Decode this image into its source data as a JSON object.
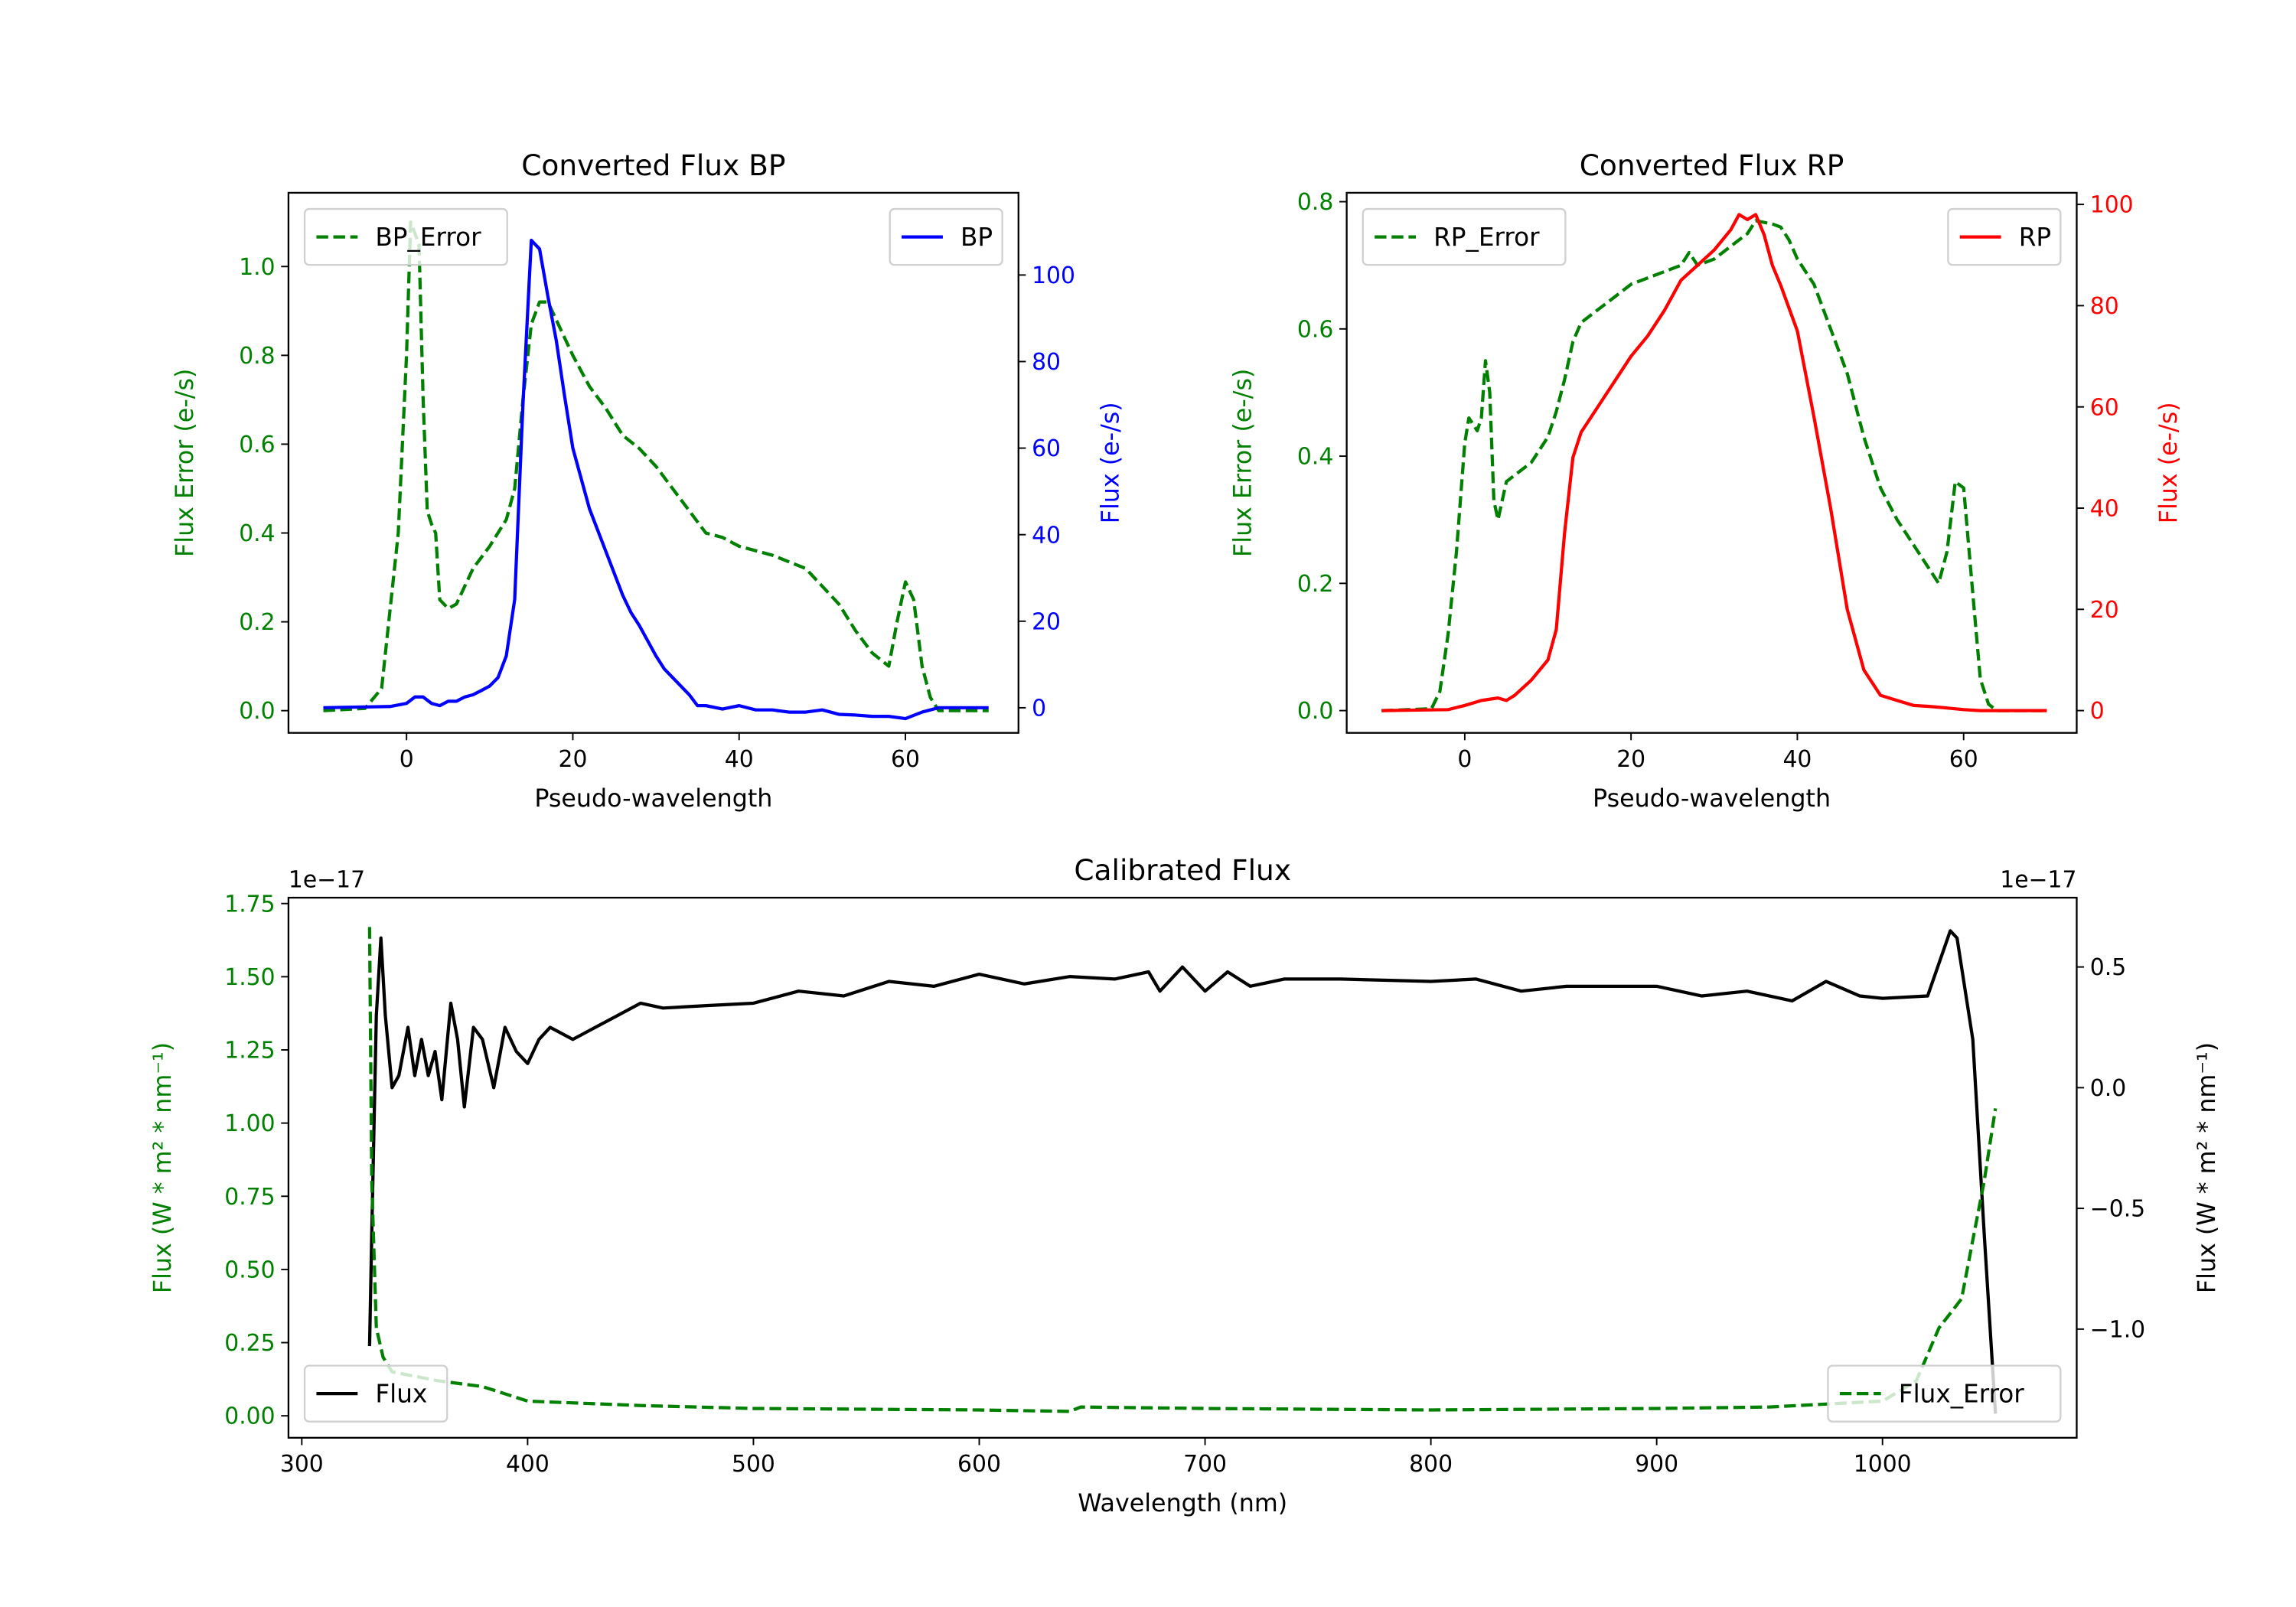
{
  "chart_data": [
    {
      "type": "line",
      "title": "Converted Flux BP",
      "xlabel": "Pseudo-wavelength",
      "ylabel_left": "Flux Error (e-/s)",
      "ylabel_right": "Flux (e-/s)",
      "xlim": [
        -14.2,
        73.6
      ],
      "ylim_left": [
        -0.05,
        1.166
      ],
      "ylim_right": [
        -5.8,
        119
      ],
      "xticks": [
        0,
        20,
        40,
        60
      ],
      "xtick_labels": [
        "0",
        "20",
        "40",
        "60"
      ],
      "yticks_left": [
        0,
        0.2,
        0.4,
        0.6,
        0.8,
        1.0
      ],
      "ytick_labels_left": [
        "0.0",
        "0.2",
        "0.4",
        "0.6",
        "0.8",
        "1.0"
      ],
      "yticks_right": [
        0,
        20,
        40,
        60,
        80,
        100
      ],
      "ytick_labels_right": [
        "0",
        "20",
        "40",
        "60",
        "80",
        "100"
      ],
      "left_color": "#008000",
      "right_color": "#0000ff",
      "series": [
        {
          "name": "BP_Error",
          "axis": "left",
          "color": "#008000",
          "dash": true,
          "legend": "upper-left",
          "x": [
            -10,
            -5,
            -3,
            -1,
            0,
            0.5,
            1.5,
            2,
            2.5,
            3,
            3.5,
            4,
            5,
            6,
            8,
            10,
            12,
            13,
            14,
            15,
            16,
            17,
            18,
            20,
            22,
            24,
            26,
            28,
            30,
            32,
            34,
            36,
            38,
            40,
            44,
            48,
            50,
            52,
            54,
            56,
            58,
            59,
            60,
            61,
            62,
            63,
            64,
            70
          ],
          "y": [
            0,
            0.005,
            0.05,
            0.4,
            0.8,
            1.1,
            1.05,
            0.7,
            0.45,
            0.42,
            0.4,
            0.25,
            0.23,
            0.24,
            0.32,
            0.37,
            0.43,
            0.5,
            0.7,
            0.87,
            0.92,
            0.92,
            0.88,
            0.8,
            0.73,
            0.68,
            0.62,
            0.59,
            0.55,
            0.5,
            0.45,
            0.4,
            0.39,
            0.37,
            0.35,
            0.32,
            0.28,
            0.24,
            0.18,
            0.13,
            0.1,
            0.2,
            0.29,
            0.25,
            0.1,
            0.03,
            0,
            0
          ]
        },
        {
          "name": "BP",
          "axis": "right",
          "color": "#0000ff",
          "dash": false,
          "legend": "upper-right",
          "x": [
            -10,
            -2,
            0,
            1,
            2,
            3,
            4,
            5,
            6,
            7,
            8,
            9,
            10,
            11,
            12,
            13,
            14,
            15,
            16,
            17,
            18,
            19,
            20,
            22,
            24,
            26,
            27,
            28,
            30,
            31,
            32,
            34,
            35,
            36,
            38,
            40,
            42,
            44,
            46,
            48,
            50,
            52,
            54,
            56,
            58,
            60,
            62,
            64,
            70
          ],
          "y": [
            0,
            0.3,
            1,
            2.5,
            2.5,
            1,
            0.5,
            1.5,
            1.5,
            2.5,
            3,
            4,
            5,
            7,
            12,
            25,
            70,
            108,
            106,
            95,
            85,
            72,
            60,
            46,
            36,
            26,
            22,
            19,
            12,
            9,
            7,
            3,
            0.5,
            0.5,
            -0.3,
            0.5,
            -0.5,
            -0.5,
            -1,
            -1,
            -0.5,
            -1.5,
            -1.7,
            -2,
            -2,
            -2.5,
            -1,
            0,
            0
          ]
        }
      ]
    },
    {
      "type": "line",
      "title": "Converted Flux RP",
      "xlabel": "Pseudo-wavelength",
      "ylabel_left": "Flux Error (e-/s)",
      "ylabel_right": "Flux (e-/s)",
      "xlim": [
        -14.2,
        73.6
      ],
      "ylim_left": [
        -0.035,
        0.814
      ],
      "ylim_right": [
        -4.4,
        102.3
      ],
      "xticks": [
        0,
        20,
        40,
        60
      ],
      "xtick_labels": [
        "0",
        "20",
        "40",
        "60"
      ],
      "yticks_left": [
        0,
        0.2,
        0.4,
        0.6,
        0.8
      ],
      "ytick_labels_left": [
        "0.0",
        "0.2",
        "0.4",
        "0.6",
        "0.8"
      ],
      "yticks_right": [
        0,
        20,
        40,
        60,
        80,
        100
      ],
      "ytick_labels_right": [
        "0",
        "20",
        "40",
        "60",
        "80",
        "100"
      ],
      "left_color": "#008000",
      "right_color": "#ff0000",
      "series": [
        {
          "name": "RP_Error",
          "axis": "left",
          "color": "#008000",
          "dash": true,
          "legend": "upper-left",
          "x": [
            -10,
            -4,
            -3,
            -2,
            -1,
            0,
            0.5,
            1,
            1.5,
            2,
            2.5,
            3,
            3.5,
            4,
            5,
            6,
            8,
            10,
            11,
            12,
            13,
            14,
            16,
            18,
            20,
            22,
            24,
            26,
            27,
            28,
            30,
            32,
            34,
            35,
            37,
            38,
            39,
            40,
            42,
            44,
            46,
            48,
            50,
            52,
            54,
            55,
            56,
            57,
            58,
            59,
            60,
            61,
            62,
            63,
            64,
            70
          ],
          "y": [
            0,
            0.003,
            0.03,
            0.12,
            0.25,
            0.42,
            0.46,
            0.45,
            0.44,
            0.46,
            0.55,
            0.5,
            0.33,
            0.3,
            0.36,
            0.37,
            0.39,
            0.43,
            0.47,
            0.52,
            0.58,
            0.61,
            0.63,
            0.65,
            0.67,
            0.68,
            0.69,
            0.7,
            0.72,
            0.7,
            0.71,
            0.73,
            0.75,
            0.77,
            0.765,
            0.76,
            0.74,
            0.71,
            0.67,
            0.6,
            0.53,
            0.43,
            0.35,
            0.3,
            0.26,
            0.24,
            0.22,
            0.2,
            0.25,
            0.36,
            0.35,
            0.2,
            0.05,
            0.01,
            0,
            0
          ]
        },
        {
          "name": "RP",
          "axis": "right",
          "color": "#ff0000",
          "dash": false,
          "legend": "upper-right",
          "x": [
            -10,
            -2,
            0,
            2,
            4,
            5,
            6,
            8,
            10,
            11,
            12,
            13,
            14,
            16,
            18,
            20,
            22,
            24,
            26,
            28,
            30,
            32,
            33,
            34,
            35,
            36,
            37,
            38,
            40,
            42,
            44,
            46,
            48,
            50,
            52,
            54,
            56,
            58,
            60,
            62,
            70
          ],
          "y": [
            0,
            0.2,
            1,
            2,
            2.5,
            2,
            3,
            6,
            10,
            16,
            35,
            50,
            55,
            60,
            65,
            70,
            74,
            79,
            85,
            88,
            91,
            95,
            98,
            97,
            98,
            94,
            88,
            84,
            75,
            58,
            40,
            20,
            8,
            3,
            2,
            1,
            0.8,
            0.5,
            0.2,
            0,
            0
          ]
        }
      ]
    },
    {
      "type": "line",
      "title": "Calibrated Flux",
      "xlabel": "Wavelength (nm)",
      "ylabel_left": "Flux (W * m² * nm⁻¹)",
      "ylabel_right": "Flux (W * m² * nm⁻¹)",
      "offset_left": "1e−17",
      "offset_right": "1e−17",
      "xlim": [
        294.1,
        1086
      ],
      "ylim_left": [
        -0.075,
        1.77
      ],
      "ylim_right": [
        -1.45,
        0.787
      ],
      "xticks": [
        300,
        400,
        500,
        600,
        700,
        800,
        900,
        1000
      ],
      "xtick_labels": [
        "300",
        "400",
        "500",
        "600",
        "700",
        "800",
        "900",
        "1000"
      ],
      "yticks_left": [
        0,
        0.25,
        0.5,
        0.75,
        1.0,
        1.25,
        1.5,
        1.75
      ],
      "ytick_labels_left": [
        "0.00",
        "0.25",
        "0.50",
        "0.75",
        "1.00",
        "1.25",
        "1.50",
        "1.75"
      ],
      "yticks_right": [
        -1.0,
        -0.5,
        0.0,
        0.5
      ],
      "ytick_labels_right": [
        "−1.0",
        "−0.5",
        "0.0",
        "0.5"
      ],
      "left_color": "#008000",
      "right_color": "#000000",
      "series": [
        {
          "name": "Flux",
          "axis": "right",
          "color": "#000000",
          "dash": false,
          "legend": "lower-left",
          "x": [
            330,
            331,
            333,
            335,
            337,
            340,
            343,
            347,
            350,
            353,
            356,
            359,
            362,
            366,
            369,
            372,
            376,
            380,
            385,
            390,
            395,
            400,
            405,
            410,
            420,
            430,
            440,
            450,
            460,
            480,
            500,
            520,
            540,
            560,
            580,
            600,
            620,
            640,
            660,
            675,
            680,
            690,
            700,
            710,
            720,
            735,
            760,
            800,
            820,
            840,
            860,
            880,
            900,
            920,
            940,
            960,
            975,
            990,
            1000,
            1020,
            1030,
            1033,
            1040,
            1045,
            1050
          ],
          "y": [
            -1.07,
            -0.6,
            0.3,
            0.62,
            0.3,
            0,
            0.05,
            0.25,
            0.05,
            0.2,
            0.05,
            0.15,
            -0.05,
            0.35,
            0.2,
            -0.08,
            0.25,
            0.2,
            0,
            0.25,
            0.15,
            0.1,
            0.2,
            0.25,
            0.2,
            0.25,
            0.3,
            0.35,
            0.33,
            0.34,
            0.35,
            0.4,
            0.38,
            0.44,
            0.42,
            0.47,
            0.43,
            0.46,
            0.45,
            0.48,
            0.4,
            0.5,
            0.4,
            0.48,
            0.42,
            0.45,
            0.45,
            0.44,
            0.45,
            0.4,
            0.42,
            0.42,
            0.42,
            0.38,
            0.4,
            0.36,
            0.44,
            0.38,
            0.37,
            0.38,
            0.65,
            0.62,
            0.2,
            -0.6,
            -1.35
          ]
        },
        {
          "name": "Flux_Error",
          "axis": "left",
          "color": "#008000",
          "dash": true,
          "legend": "lower-right",
          "x": [
            330,
            331,
            333,
            336,
            340,
            360,
            380,
            400,
            450,
            500,
            600,
            640,
            645,
            700,
            800,
            900,
            950,
            1000,
            1015,
            1025,
            1030,
            1035,
            1040,
            1045,
            1050
          ],
          "y": [
            1.67,
            0.8,
            0.3,
            0.2,
            0.15,
            0.12,
            0.1,
            0.05,
            0.035,
            0.025,
            0.02,
            0.015,
            0.03,
            0.025,
            0.02,
            0.025,
            0.03,
            0.05,
            0.12,
            0.3,
            0.35,
            0.4,
            0.6,
            0.8,
            1.05
          ]
        }
      ]
    }
  ]
}
